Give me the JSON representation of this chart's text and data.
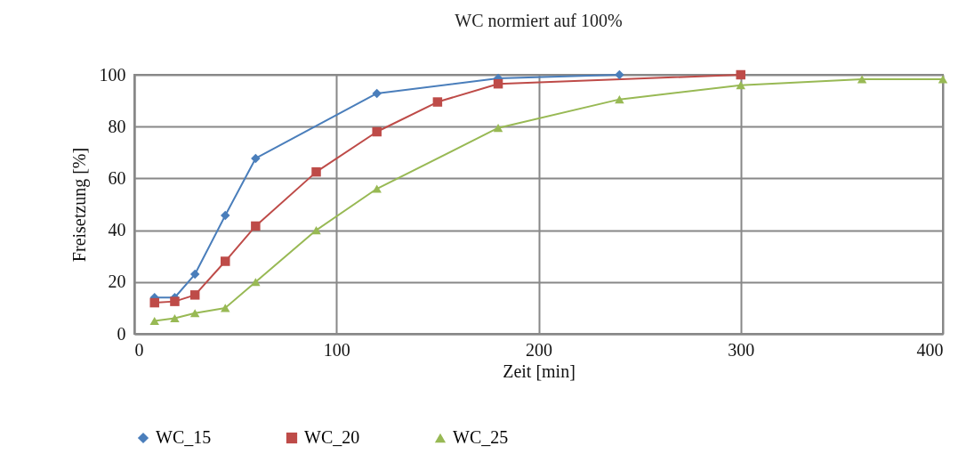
{
  "chart_data": {
    "type": "line",
    "title": "WC normiert auf 100%",
    "xlabel": "Zeit [min]",
    "ylabel": "Freisetzung [%]",
    "xlim": [
      0,
      400
    ],
    "xticks": [
      0,
      100,
      200,
      300,
      400
    ],
    "ylim": [
      0,
      100
    ],
    "yticks": [
      0,
      20,
      40,
      60,
      80,
      100
    ],
    "grid": true,
    "legend": "bottom",
    "line_style": "solid",
    "series": [
      {
        "name": "WC_15",
        "color": "#4a7ebb",
        "marker": "diamond",
        "x": [
          10,
          20,
          30,
          45,
          60,
          120,
          180,
          240
        ],
        "values": [
          14,
          14,
          23,
          45.7,
          67.7,
          92.8,
          98.6,
          100
        ]
      },
      {
        "name": "WC_20",
        "color": "#be4b48",
        "marker": "square",
        "x": [
          10,
          20,
          30,
          45,
          60,
          90,
          120,
          150,
          180,
          300
        ],
        "values": [
          12,
          12.5,
          15,
          28,
          41.6,
          62.5,
          78,
          89.5,
          96.5,
          100
        ]
      },
      {
        "name": "WC_25",
        "color": "#98b954",
        "marker": "triangle",
        "x": [
          10,
          20,
          30,
          45,
          60,
          90,
          120,
          180,
          240,
          300,
          360,
          400
        ],
        "values": [
          5,
          6,
          8,
          10,
          20,
          40,
          56,
          79.5,
          90.5,
          96,
          98.3,
          98.3
        ]
      }
    ]
  }
}
